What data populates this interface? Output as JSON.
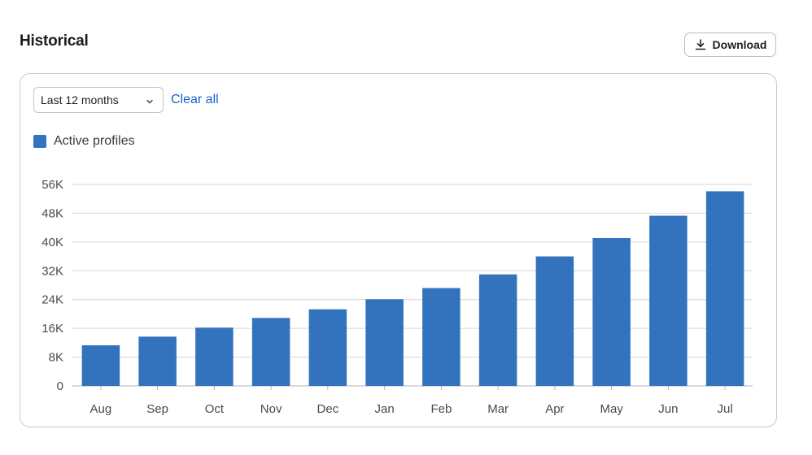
{
  "header": {
    "title": "Historical",
    "download_label": "Download"
  },
  "filters": {
    "range_selected": "Last 12 months",
    "clear_label": "Clear all"
  },
  "colors": {
    "series": "#3373bd",
    "link": "#1a62c9",
    "grid": "#d6d6d6"
  },
  "icons": {
    "download": "download-icon",
    "dropdown": "chevron-down-icon"
  },
  "chart_data": {
    "type": "bar",
    "categories": [
      "Aug",
      "Sep",
      "Oct",
      "Nov",
      "Dec",
      "Jan",
      "Feb",
      "Mar",
      "Apr",
      "May",
      "Jun",
      "Jul"
    ],
    "series": [
      {
        "name": "Active profiles",
        "values": [
          11300,
          13700,
          16200,
          18900,
          21300,
          24100,
          27200,
          31000,
          36000,
          41100,
          47300,
          54100
        ]
      }
    ],
    "yticks": [
      "0",
      "8K",
      "16K",
      "24K",
      "32K",
      "40K",
      "48K",
      "56K"
    ],
    "ylim": [
      0,
      56000
    ],
    "grid": true,
    "legend_position": "top-left"
  }
}
